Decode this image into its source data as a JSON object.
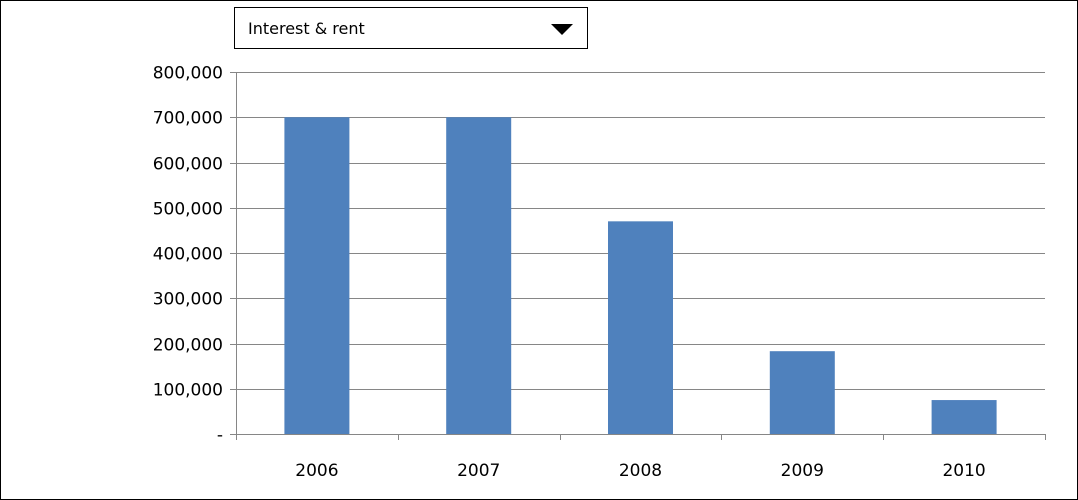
{
  "filter": {
    "selected": "Interest & rent"
  },
  "chart_data": {
    "type": "bar",
    "categories": [
      "2006",
      "2007",
      "2008",
      "2009",
      "2010"
    ],
    "values": [
      700000,
      700000,
      470000,
      183000,
      75000
    ],
    "ylim": [
      0,
      800000
    ],
    "yticks": [
      0,
      100000,
      200000,
      300000,
      400000,
      500000,
      600000,
      700000,
      800000
    ],
    "ytick_labels": [
      "-",
      "100,000",
      "200,000",
      "300,000",
      "400,000",
      "500,000",
      "600,000",
      "700,000",
      "800,000"
    ],
    "grid": true,
    "legend": "none",
    "title": "",
    "xlabel": "",
    "ylabel": "",
    "bar_color": "#4F81BD",
    "grid_color": "#868686"
  }
}
